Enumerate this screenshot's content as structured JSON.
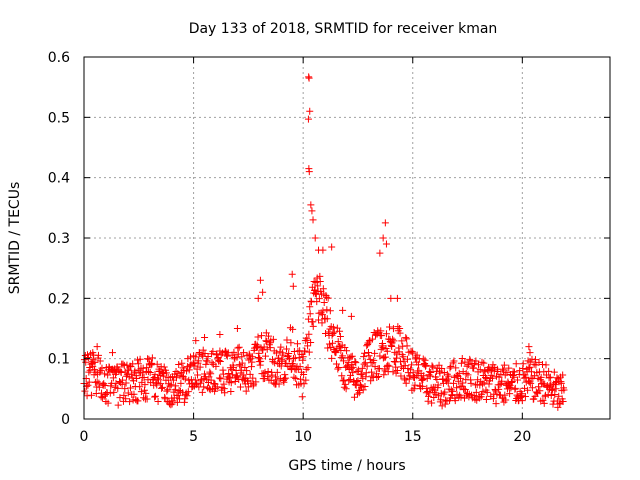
{
  "chart_data": {
    "type": "scatter",
    "title": "Day 133 of 2018, SRMTID for receiver kman",
    "xlabel": "GPS time / hours",
    "ylabel": "SRMTID / TECUs",
    "xlim": [
      0,
      24
    ],
    "ylim": [
      0,
      0.6
    ],
    "xticks": [
      0,
      5,
      10,
      15,
      20
    ],
    "xtick_labels": [
      "0",
      "5",
      "10",
      "15",
      "20"
    ],
    "yticks": [
      0,
      0.1,
      0.2,
      0.3,
      0.4,
      0.5,
      0.6
    ],
    "ytick_labels": [
      "0",
      "0.1",
      "0.2",
      "0.3",
      "0.4",
      "0.5",
      "0.6"
    ],
    "grid": true,
    "marker": "plus",
    "series": [
      {
        "name": "SRMTID",
        "color": "#ff0000",
        "x_start": 0,
        "x_end": 21.9,
        "x_step": 0.02,
        "baseline": [
          [
            0,
            0.07
          ],
          [
            0.5,
            0.075
          ],
          [
            1,
            0.06
          ],
          [
            1.5,
            0.055
          ],
          [
            2,
            0.06
          ],
          [
            2.5,
            0.065
          ],
          [
            3,
            0.07
          ],
          [
            3.5,
            0.06
          ],
          [
            4,
            0.055
          ],
          [
            4.5,
            0.06
          ],
          [
            5,
            0.07
          ],
          [
            5.5,
            0.08
          ],
          [
            6,
            0.075
          ],
          [
            6.5,
            0.08
          ],
          [
            7,
            0.085
          ],
          [
            7.5,
            0.08
          ],
          [
            8,
            0.11
          ],
          [
            8.5,
            0.1
          ],
          [
            9,
            0.09
          ],
          [
            9.3,
            0.1
          ],
          [
            9.5,
            0.12
          ],
          [
            9.8,
            0.08
          ],
          [
            10,
            0.07
          ],
          [
            10.2,
            0.12
          ],
          [
            10.5,
            0.2
          ],
          [
            10.8,
            0.2
          ],
          [
            11,
            0.17
          ],
          [
            11.5,
            0.12
          ],
          [
            12,
            0.08
          ],
          [
            12.5,
            0.06
          ],
          [
            13,
            0.1
          ],
          [
            13.5,
            0.11
          ],
          [
            14,
            0.12
          ],
          [
            14.5,
            0.11
          ],
          [
            15,
            0.08
          ],
          [
            15.5,
            0.065
          ],
          [
            16,
            0.055
          ],
          [
            16.5,
            0.055
          ],
          [
            17,
            0.065
          ],
          [
            17.5,
            0.07
          ],
          [
            18,
            0.065
          ],
          [
            18.5,
            0.06
          ],
          [
            19,
            0.06
          ],
          [
            19.5,
            0.055
          ],
          [
            20,
            0.06
          ],
          [
            20.5,
            0.065
          ],
          [
            21,
            0.06
          ],
          [
            21.5,
            0.045
          ],
          [
            21.9,
            0.04
          ]
        ],
        "noise": 0.028,
        "peaks": [
          [
            10.25,
            0.567
          ],
          [
            10.27,
            0.565
          ],
          [
            10.3,
            0.51
          ],
          [
            10.24,
            0.497
          ],
          [
            10.26,
            0.415
          ],
          [
            10.28,
            0.41
          ],
          [
            10.35,
            0.355
          ],
          [
            10.4,
            0.345
          ],
          [
            10.45,
            0.33
          ],
          [
            10.55,
            0.3
          ],
          [
            10.7,
            0.28
          ],
          [
            10.9,
            0.28
          ],
          [
            11.3,
            0.285
          ],
          [
            8.05,
            0.23
          ],
          [
            8.15,
            0.21
          ],
          [
            7.95,
            0.2
          ],
          [
            9.5,
            0.24
          ],
          [
            9.55,
            0.22
          ],
          [
            13.5,
            0.275
          ],
          [
            13.65,
            0.3
          ],
          [
            13.75,
            0.325
          ],
          [
            13.8,
            0.29
          ],
          [
            14.0,
            0.2
          ],
          [
            14.3,
            0.2
          ],
          [
            11.8,
            0.18
          ],
          [
            12.2,
            0.17
          ],
          [
            20.3,
            0.12
          ],
          [
            20.35,
            0.11
          ],
          [
            0.4,
            0.11
          ],
          [
            0.6,
            0.12
          ],
          [
            1.3,
            0.11
          ],
          [
            5.1,
            0.13
          ],
          [
            5.5,
            0.135
          ],
          [
            6.2,
            0.14
          ],
          [
            7.0,
            0.15
          ]
        ]
      }
    ]
  }
}
